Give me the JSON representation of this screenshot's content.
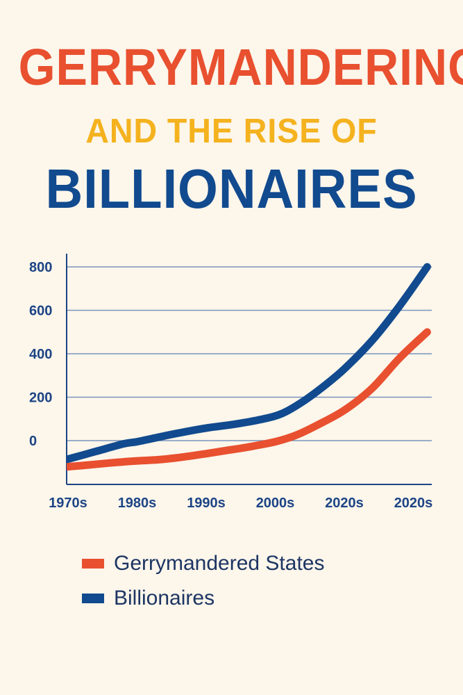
{
  "header": {
    "line1": "GERRYMANDERING",
    "line2": "AND THE RISE OF",
    "line3": "BILLIONAIRES"
  },
  "colors": {
    "background": "#FCF6EB",
    "orange": "#E8502F",
    "yellow": "#F4B21E",
    "blue": "#114A8E",
    "grid": "#7A93BC",
    "axis": "#1D4485"
  },
  "chart_data": {
    "type": "line",
    "categories": [
      "1970s",
      "1980s",
      "1990s",
      "2000s",
      "2020s",
      "2020s"
    ],
    "yticks": [
      0,
      200,
      400,
      600,
      800
    ],
    "ylim": [
      -200,
      820
    ],
    "grid": true,
    "legend_position": "bottom-left",
    "series": [
      {
        "name": "Gerrymandered States",
        "color": "#E8502F",
        "points": [
          [
            0,
            -120
          ],
          [
            0.3,
            -112
          ],
          [
            0.6,
            -103
          ],
          [
            1.0,
            -93
          ],
          [
            1.3,
            -88
          ],
          [
            1.6,
            -78
          ],
          [
            2.0,
            -60
          ],
          [
            2.3,
            -45
          ],
          [
            2.6,
            -30
          ],
          [
            3.0,
            -5
          ],
          [
            3.3,
            25
          ],
          [
            3.6,
            70
          ],
          [
            4.0,
            140
          ],
          [
            4.4,
            240
          ],
          [
            4.8,
            380
          ],
          [
            5.2,
            500
          ]
        ]
      },
      {
        "name": "Billionaires",
        "color": "#114A8E",
        "points": [
          [
            0,
            -85
          ],
          [
            0.4,
            -50
          ],
          [
            0.8,
            -15
          ],
          [
            1.0,
            -5
          ],
          [
            1.3,
            15
          ],
          [
            1.6,
            35
          ],
          [
            2.0,
            58
          ],
          [
            2.4,
            75
          ],
          [
            2.8,
            98
          ],
          [
            3.1,
            125
          ],
          [
            3.4,
            180
          ],
          [
            3.7,
            250
          ],
          [
            4.0,
            330
          ],
          [
            4.4,
            460
          ],
          [
            4.8,
            620
          ],
          [
            5.2,
            800
          ]
        ]
      }
    ]
  },
  "legend": {
    "items": [
      {
        "label": "Gerrymandered States",
        "color": "#E8502F"
      },
      {
        "label": "Billionaires",
        "color": "#114A8E"
      }
    ]
  }
}
